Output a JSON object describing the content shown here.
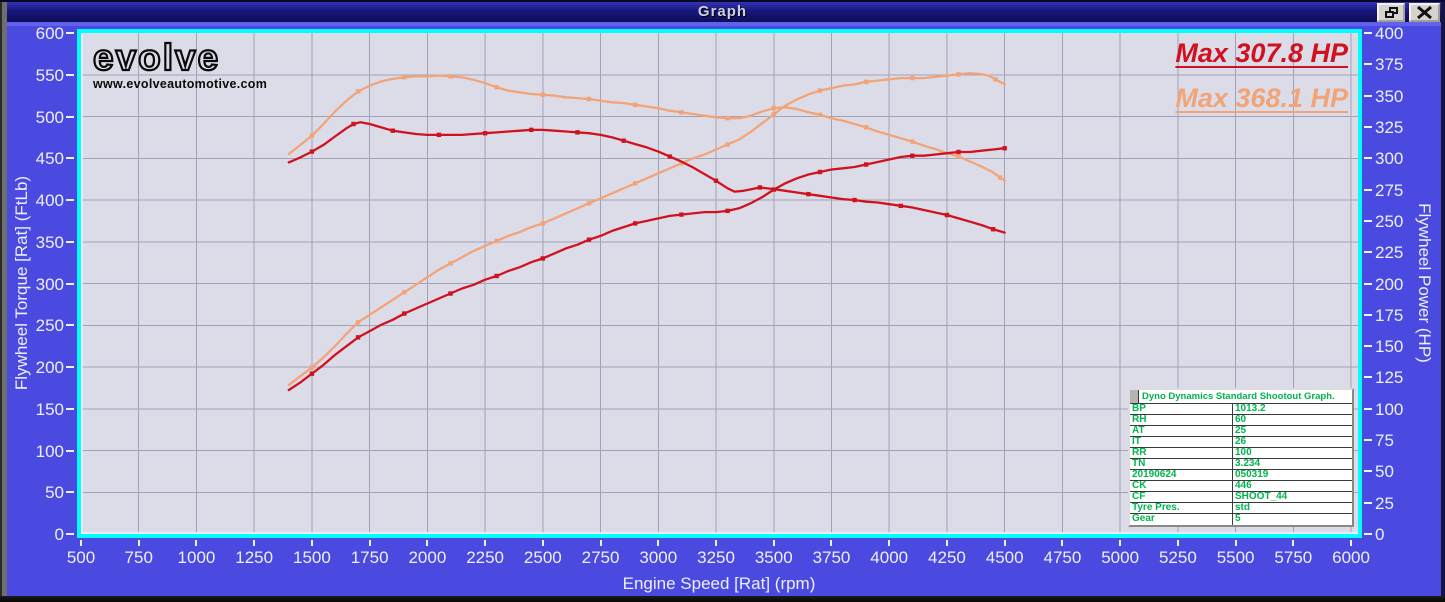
{
  "window": {
    "title": "Graph",
    "buttons": {
      "restore": "restore-window",
      "close": "close-window"
    }
  },
  "logo": {
    "brand": "evolve",
    "site": "www.evolveautomotive.com"
  },
  "annotations": {
    "max_hp_red": "Max 307.8 HP",
    "max_hp_salmon": "Max 368.1 HP"
  },
  "axes": {
    "x": {
      "label": "Engine Speed [Rat] (rpm)",
      "min": 500,
      "max": 6000,
      "step": 250
    },
    "y_left": {
      "label": "Flywheel Torque [Rat] (FtLb)",
      "min": 0,
      "max": 600,
      "step": 50
    },
    "y_right": {
      "label": "Flywheel Power (HP)",
      "min": 0,
      "max": 400,
      "step": 25
    }
  },
  "colors": {
    "run_red": "#d01220",
    "run_salmon": "#f2a478",
    "grid": "#a2a2b6",
    "plot_bg": "#dcdce9",
    "frame_cyan": "#00ffff",
    "table_green": "#00b44e",
    "client_blue": "#4a4ae0"
  },
  "chart_data": {
    "type": "line",
    "x_range": [
      500,
      6000
    ],
    "x_step": 250,
    "y_left_range": [
      0,
      600
    ],
    "y_left_step": 50,
    "y_right_range": [
      0,
      400
    ],
    "y_right_step": 25,
    "grid": true,
    "series": [
      {
        "name": "torque-salmon",
        "axis": "left",
        "color": "#f2a478",
        "points": [
          [
            1400,
            455
          ],
          [
            1450,
            466
          ],
          [
            1500,
            477
          ],
          [
            1550,
            491
          ],
          [
            1600,
            506
          ],
          [
            1650,
            519
          ],
          [
            1700,
            530
          ],
          [
            1750,
            537
          ],
          [
            1800,
            542
          ],
          [
            1850,
            545
          ],
          [
            1900,
            547
          ],
          [
            1950,
            548
          ],
          [
            2000,
            548
          ],
          [
            2050,
            549
          ],
          [
            2100,
            548
          ],
          [
            2150,
            547
          ],
          [
            2200,
            544
          ],
          [
            2250,
            540
          ],
          [
            2300,
            535
          ],
          [
            2350,
            531
          ],
          [
            2400,
            529
          ],
          [
            2450,
            527
          ],
          [
            2500,
            526
          ],
          [
            2550,
            525
          ],
          [
            2600,
            523
          ],
          [
            2650,
            522
          ],
          [
            2700,
            521
          ],
          [
            2750,
            519
          ],
          [
            2800,
            517
          ],
          [
            2850,
            516
          ],
          [
            2900,
            514
          ],
          [
            2950,
            512
          ],
          [
            3000,
            510
          ],
          [
            3050,
            507
          ],
          [
            3100,
            505
          ],
          [
            3150,
            503
          ],
          [
            3200,
            501
          ],
          [
            3250,
            499
          ],
          [
            3300,
            498
          ],
          [
            3350,
            498
          ],
          [
            3400,
            501
          ],
          [
            3450,
            506
          ],
          [
            3500,
            510
          ],
          [
            3550,
            511
          ],
          [
            3600,
            509
          ],
          [
            3650,
            505
          ],
          [
            3700,
            502
          ],
          [
            3750,
            498
          ],
          [
            3800,
            495
          ],
          [
            3850,
            491
          ],
          [
            3900,
            487
          ],
          [
            3950,
            482
          ],
          [
            4000,
            478
          ],
          [
            4050,
            474
          ],
          [
            4100,
            470
          ],
          [
            4150,
            465
          ],
          [
            4200,
            461
          ],
          [
            4250,
            456
          ],
          [
            4300,
            452
          ],
          [
            4350,
            446
          ],
          [
            4400,
            440
          ],
          [
            4450,
            433
          ],
          [
            4480,
            427
          ],
          [
            4500,
            423
          ]
        ]
      },
      {
        "name": "power-salmon",
        "axis": "right",
        "color": "#f2a478",
        "points": [
          [
            1400,
            119
          ],
          [
            1450,
            126
          ],
          [
            1500,
            133
          ],
          [
            1550,
            141
          ],
          [
            1600,
            150
          ],
          [
            1650,
            160
          ],
          [
            1700,
            169
          ],
          [
            1750,
            175
          ],
          [
            1800,
            181
          ],
          [
            1850,
            187
          ],
          [
            1900,
            193
          ],
          [
            1950,
            199
          ],
          [
            2000,
            205
          ],
          [
            2050,
            211
          ],
          [
            2100,
            216
          ],
          [
            2150,
            221
          ],
          [
            2200,
            226
          ],
          [
            2250,
            230
          ],
          [
            2300,
            234
          ],
          [
            2350,
            238
          ],
          [
            2400,
            241
          ],
          [
            2450,
            245
          ],
          [
            2500,
            248
          ],
          [
            2550,
            252
          ],
          [
            2600,
            256
          ],
          [
            2650,
            260
          ],
          [
            2700,
            264
          ],
          [
            2750,
            268
          ],
          [
            2800,
            272
          ],
          [
            2850,
            276
          ],
          [
            2900,
            280
          ],
          [
            2950,
            284
          ],
          [
            3000,
            288
          ],
          [
            3050,
            292
          ],
          [
            3100,
            296
          ],
          [
            3150,
            300
          ],
          [
            3200,
            303
          ],
          [
            3250,
            307
          ],
          [
            3300,
            311
          ],
          [
            3350,
            315
          ],
          [
            3400,
            321
          ],
          [
            3450,
            328
          ],
          [
            3500,
            335
          ],
          [
            3550,
            342
          ],
          [
            3600,
            347
          ],
          [
            3650,
            351
          ],
          [
            3700,
            354
          ],
          [
            3750,
            356
          ],
          [
            3800,
            358
          ],
          [
            3850,
            359
          ],
          [
            3900,
            361
          ],
          [
            3950,
            362
          ],
          [
            4000,
            363
          ],
          [
            4050,
            364
          ],
          [
            4100,
            364
          ],
          [
            4150,
            364
          ],
          [
            4200,
            365
          ],
          [
            4250,
            366
          ],
          [
            4300,
            367
          ],
          [
            4350,
            368
          ],
          [
            4400,
            367
          ],
          [
            4430,
            366
          ],
          [
            4460,
            363
          ],
          [
            4500,
            359
          ]
        ]
      },
      {
        "name": "torque-red",
        "axis": "left",
        "color": "#d01220",
        "points": [
          [
            1400,
            445
          ],
          [
            1450,
            451
          ],
          [
            1500,
            458
          ],
          [
            1550,
            466
          ],
          [
            1600,
            476
          ],
          [
            1650,
            486
          ],
          [
            1680,
            491
          ],
          [
            1710,
            493
          ],
          [
            1750,
            491
          ],
          [
            1800,
            487
          ],
          [
            1850,
            483
          ],
          [
            1900,
            481
          ],
          [
            1950,
            479
          ],
          [
            2000,
            478
          ],
          [
            2050,
            478
          ],
          [
            2100,
            478
          ],
          [
            2150,
            478
          ],
          [
            2200,
            479
          ],
          [
            2250,
            480
          ],
          [
            2300,
            481
          ],
          [
            2350,
            482
          ],
          [
            2400,
            483
          ],
          [
            2450,
            484
          ],
          [
            2500,
            484
          ],
          [
            2550,
            483
          ],
          [
            2600,
            482
          ],
          [
            2650,
            481
          ],
          [
            2700,
            480
          ],
          [
            2750,
            478
          ],
          [
            2800,
            475
          ],
          [
            2850,
            471
          ],
          [
            2900,
            467
          ],
          [
            2950,
            463
          ],
          [
            3000,
            458
          ],
          [
            3050,
            452
          ],
          [
            3100,
            446
          ],
          [
            3150,
            439
          ],
          [
            3200,
            431
          ],
          [
            3250,
            423
          ],
          [
            3300,
            414
          ],
          [
            3330,
            410
          ],
          [
            3370,
            411
          ],
          [
            3440,
            415
          ],
          [
            3500,
            413
          ],
          [
            3550,
            411
          ],
          [
            3600,
            409
          ],
          [
            3650,
            407
          ],
          [
            3700,
            405
          ],
          [
            3750,
            403
          ],
          [
            3800,
            401
          ],
          [
            3850,
            400
          ],
          [
            3900,
            398
          ],
          [
            3950,
            397
          ],
          [
            4000,
            395
          ],
          [
            4050,
            393
          ],
          [
            4100,
            391
          ],
          [
            4150,
            388
          ],
          [
            4200,
            385
          ],
          [
            4250,
            382
          ],
          [
            4300,
            378
          ],
          [
            4350,
            374
          ],
          [
            4400,
            370
          ],
          [
            4450,
            365
          ],
          [
            4500,
            361
          ]
        ]
      },
      {
        "name": "power-red",
        "axis": "right",
        "color": "#d01220",
        "points": [
          [
            1400,
            115
          ],
          [
            1450,
            121
          ],
          [
            1500,
            128
          ],
          [
            1550,
            135
          ],
          [
            1600,
            143
          ],
          [
            1650,
            150
          ],
          [
            1700,
            157
          ],
          [
            1750,
            162
          ],
          [
            1800,
            167
          ],
          [
            1850,
            171
          ],
          [
            1900,
            176
          ],
          [
            1950,
            180
          ],
          [
            2000,
            184
          ],
          [
            2050,
            188
          ],
          [
            2100,
            192
          ],
          [
            2150,
            196
          ],
          [
            2200,
            199
          ],
          [
            2250,
            203
          ],
          [
            2300,
            206
          ],
          [
            2350,
            210
          ],
          [
            2400,
            213
          ],
          [
            2450,
            217
          ],
          [
            2500,
            220
          ],
          [
            2550,
            224
          ],
          [
            2600,
            228
          ],
          [
            2650,
            231
          ],
          [
            2700,
            235
          ],
          [
            2750,
            238
          ],
          [
            2800,
            242
          ],
          [
            2850,
            245
          ],
          [
            2900,
            248
          ],
          [
            2950,
            250
          ],
          [
            3000,
            252
          ],
          [
            3050,
            254
          ],
          [
            3100,
            255
          ],
          [
            3150,
            256
          ],
          [
            3200,
            257
          ],
          [
            3250,
            257
          ],
          [
            3300,
            258
          ],
          [
            3350,
            260
          ],
          [
            3400,
            264
          ],
          [
            3450,
            269
          ],
          [
            3500,
            275
          ],
          [
            3550,
            280
          ],
          [
            3600,
            284
          ],
          [
            3650,
            287
          ],
          [
            3700,
            289
          ],
          [
            3750,
            291
          ],
          [
            3800,
            292
          ],
          [
            3850,
            293
          ],
          [
            3900,
            295
          ],
          [
            3950,
            297
          ],
          [
            4000,
            299
          ],
          [
            4050,
            301
          ],
          [
            4100,
            302
          ],
          [
            4150,
            302
          ],
          [
            4200,
            303
          ],
          [
            4250,
            304
          ],
          [
            4300,
            305
          ],
          [
            4350,
            305
          ],
          [
            4400,
            306
          ],
          [
            4450,
            307
          ],
          [
            4500,
            308
          ]
        ]
      }
    ]
  },
  "info_table": {
    "header": "Dyno Dynamics Standard Shootout Graph.",
    "rows": [
      [
        "BP",
        "1013.2"
      ],
      [
        "RH",
        "60"
      ],
      [
        "AT",
        "25"
      ],
      [
        "IT",
        "26"
      ],
      [
        "RR",
        "100"
      ],
      [
        "TN",
        "3.234"
      ],
      [
        "20190624",
        "050319"
      ],
      [
        "CK",
        "446"
      ],
      [
        "CF",
        "SHOOT_44"
      ],
      [
        "Tyre Pres.",
        "std"
      ],
      [
        "Gear",
        "5"
      ]
    ]
  }
}
